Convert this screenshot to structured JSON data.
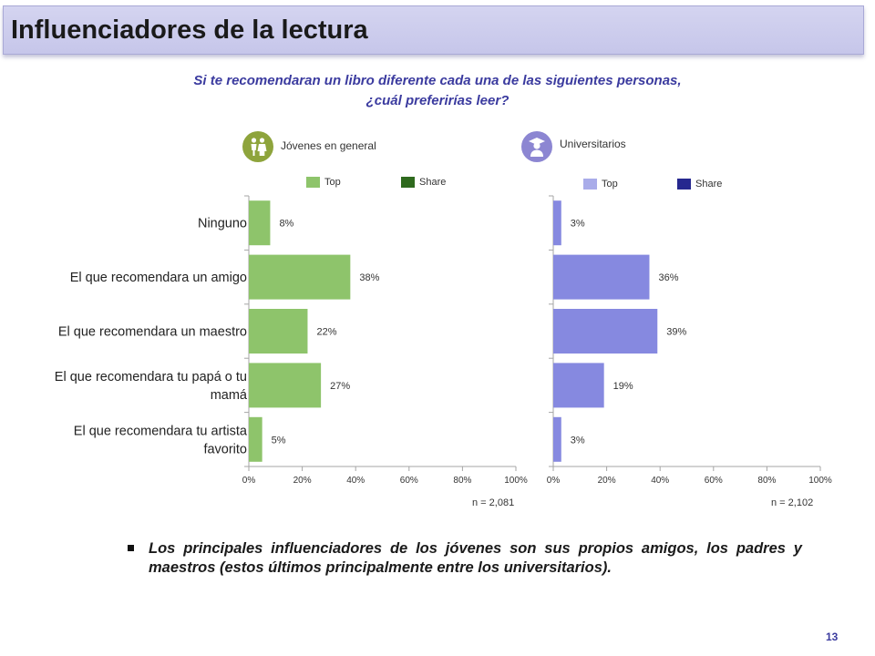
{
  "page": {
    "title": "Influenciadores de la lectura",
    "question_line1": "Si te recomendaran un libro diferente cada una de las siguientes personas,",
    "question_line2": "¿cuál preferirías leer?",
    "bullet": "Los principales influenciadores de los jóvenes son sus propios amigos, los padres y maestros (estos últimos principalmente entre los universitarios).",
    "page_number": "13"
  },
  "colors": {
    "jovenes_top": "#8ec46b",
    "jovenes_share": "#2f6a1e",
    "univ_top": "#a9ace9",
    "univ_share": "#26288f",
    "univ_bar": "#8689e0",
    "icon_green": "#8ea43c",
    "icon_purple": "#8c86d2",
    "axis": "#a6a6a6"
  },
  "icons": {
    "jovenes": "people-icon",
    "universitarios": "graduate-icon"
  },
  "chart_data": [
    {
      "type": "bar",
      "orientation": "horizontal",
      "group_label": "Jóvenes en general",
      "legend": [
        "Top",
        "Share"
      ],
      "categories": [
        "Ninguno",
        "El que recomendara un amigo",
        "El que recomendara un maestro",
        "El que recomendara tu papá o tu mamá",
        "El que recomendara tu artista favorito"
      ],
      "category_lines": [
        [
          "Ninguno"
        ],
        [
          "El que recomendara un amigo"
        ],
        [
          "El que recomendara un maestro"
        ],
        [
          "El que recomendara tu papá o tu",
          "mamá"
        ],
        [
          "El que recomendara tu artista",
          "favorito"
        ]
      ],
      "values": [
        8,
        38,
        22,
        27,
        5
      ],
      "value_labels": [
        "8%",
        "38%",
        "22%",
        "27%",
        "5%"
      ],
      "xlim": [
        0,
        100
      ],
      "xticks": [
        "0%",
        "20%",
        "40%",
        "60%",
        "80%",
        "100%"
      ],
      "n_label": "n = 2,081"
    },
    {
      "type": "bar",
      "orientation": "horizontal",
      "group_label": "Universitarios",
      "legend": [
        "Top",
        "Share"
      ],
      "categories": [
        "Ninguno",
        "El que recomendara un amigo",
        "El que recomendara un maestro",
        "El que recomendara tu papá o tu mamá",
        "El que recomendara tu artista favorito"
      ],
      "values": [
        3,
        36,
        39,
        19,
        3
      ],
      "value_labels": [
        "3%",
        "36%",
        "39%",
        "19%",
        "3%"
      ],
      "xlim": [
        0,
        100
      ],
      "xticks": [
        "0%",
        "20%",
        "40%",
        "60%",
        "80%",
        "100%"
      ],
      "n_label": "n = 2,102"
    }
  ]
}
